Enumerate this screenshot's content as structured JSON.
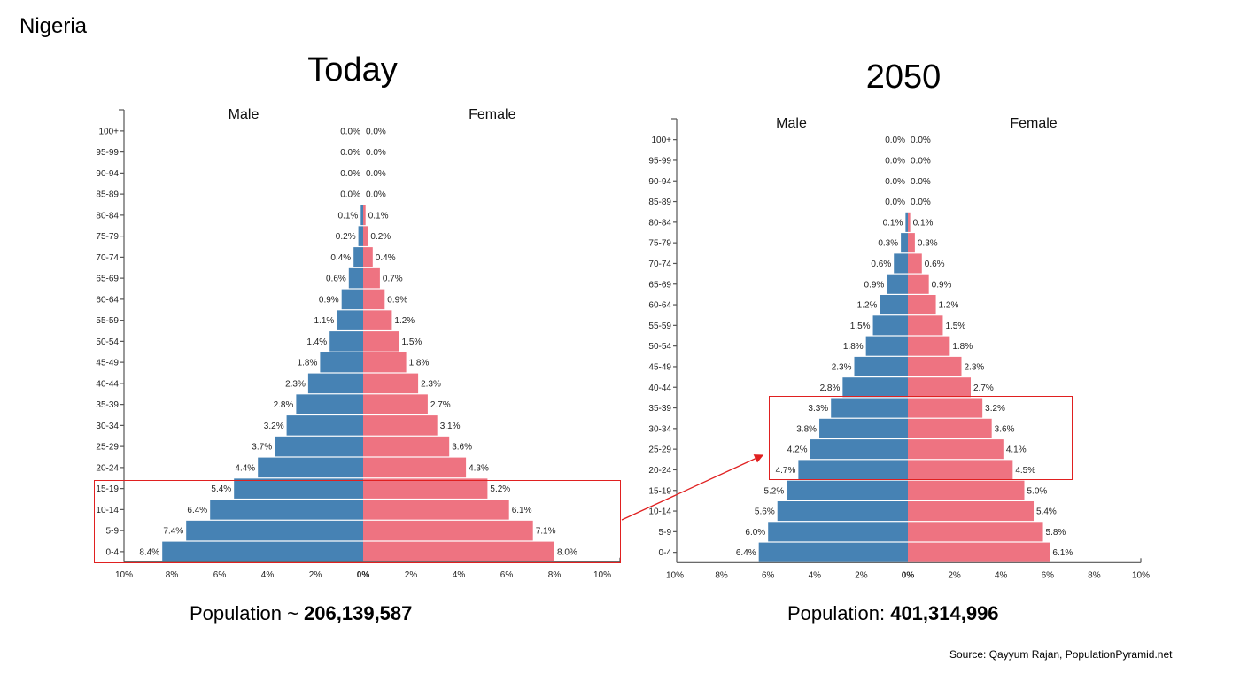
{
  "country": "Nigeria",
  "source": "Source: Qayyum Rajan, PopulationPyramid.net",
  "colors": {
    "male": "#4682b4",
    "female": "#ee7381",
    "highlight": "#e02020"
  },
  "panels": {
    "today": {
      "title": "Today",
      "population_prefix": "Population ~ ",
      "population_value": "206,139,587"
    },
    "y2050": {
      "title": "2050",
      "population_prefix": "Population: ",
      "population_value": "401,314,996"
    }
  },
  "chart_data": [
    {
      "type": "bar",
      "subtype": "population-pyramid",
      "title": "Today",
      "categories": [
        "100+",
        "95-99",
        "90-94",
        "85-89",
        "80-84",
        "75-79",
        "70-74",
        "65-69",
        "60-64",
        "55-59",
        "50-54",
        "45-49",
        "40-44",
        "35-39",
        "30-34",
        "25-29",
        "20-24",
        "15-19",
        "10-14",
        "5-9",
        "0-4"
      ],
      "series": [
        {
          "name": "Male",
          "values": [
            0.0,
            0.0,
            0.0,
            0.0,
            0.1,
            0.2,
            0.4,
            0.6,
            0.9,
            1.1,
            1.4,
            1.8,
            2.3,
            2.8,
            3.2,
            3.7,
            4.4,
            5.4,
            6.4,
            7.4,
            8.4
          ]
        },
        {
          "name": "Female",
          "values": [
            0.0,
            0.0,
            0.0,
            0.0,
            0.1,
            0.2,
            0.4,
            0.7,
            0.9,
            1.2,
            1.5,
            1.8,
            2.3,
            2.7,
            3.1,
            3.6,
            4.3,
            5.2,
            6.1,
            7.1,
            8.0
          ]
        }
      ],
      "x_ticks": [
        "10%",
        "8%",
        "6%",
        "4%",
        "2%",
        "0%",
        "2%",
        "4%",
        "6%",
        "8%",
        "10%"
      ],
      "xlim": [
        -10,
        10
      ],
      "highlight": [
        "15-19",
        "10-14",
        "5-9",
        "0-4"
      ]
    },
    {
      "type": "bar",
      "subtype": "population-pyramid",
      "title": "2050",
      "categories": [
        "100+",
        "95-99",
        "90-94",
        "85-89",
        "80-84",
        "75-79",
        "70-74",
        "65-69",
        "60-64",
        "55-59",
        "50-54",
        "45-49",
        "40-44",
        "35-39",
        "30-34",
        "25-29",
        "20-24",
        "15-19",
        "10-14",
        "5-9",
        "0-4"
      ],
      "series": [
        {
          "name": "Male",
          "values": [
            0.0,
            0.0,
            0.0,
            0.0,
            0.1,
            0.3,
            0.6,
            0.9,
            1.2,
            1.5,
            1.8,
            2.3,
            2.8,
            3.3,
            3.8,
            4.2,
            4.7,
            5.2,
            5.6,
            6.0,
            6.4
          ]
        },
        {
          "name": "Female",
          "values": [
            0.0,
            0.0,
            0.0,
            0.0,
            0.1,
            0.3,
            0.6,
            0.9,
            1.2,
            1.5,
            1.8,
            2.3,
            2.7,
            3.2,
            3.6,
            4.1,
            4.5,
            5.0,
            5.4,
            5.8,
            6.1
          ]
        }
      ],
      "x_ticks": [
        "10%",
        "8%",
        "6%",
        "4%",
        "2%",
        "0%",
        "2%",
        "4%",
        "6%",
        "8%",
        "10%"
      ],
      "xlim": [
        -10,
        10
      ],
      "highlight": [
        "35-39",
        "30-34",
        "25-29",
        "20-24"
      ]
    }
  ]
}
